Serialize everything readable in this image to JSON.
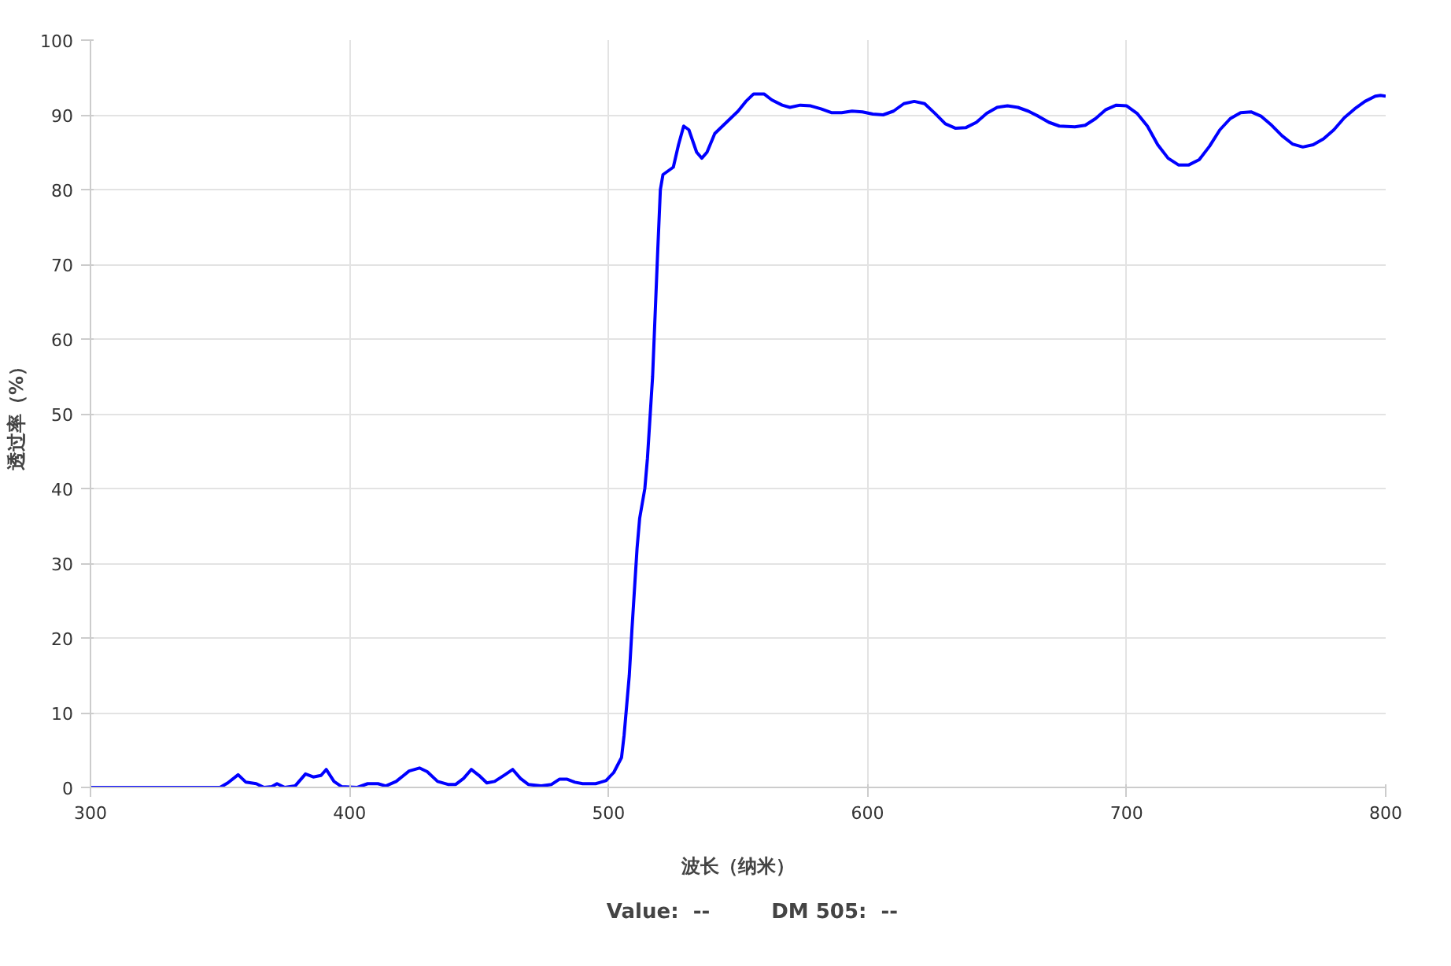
{
  "chart_data": {
    "type": "line",
    "xlabel": "波长（纳米）",
    "ylabel": "透过率（%）",
    "legend_title": "Value:  --",
    "xlim": [
      300,
      800
    ],
    "ylim": [
      0,
      100
    ],
    "xticks": [
      300,
      400,
      500,
      600,
      700,
      800
    ],
    "yticks": [
      0,
      10,
      20,
      30,
      40,
      50,
      60,
      70,
      80,
      90,
      100
    ],
    "grid": true,
    "legend": "bottom",
    "marker": "none",
    "line_style": "solid",
    "series": [
      {
        "name": "DM 505:  --",
        "color": "#0000ff",
        "x": [
          300,
          350,
          353,
          357,
          360,
          364,
          367,
          370,
          372,
          375,
          379,
          383,
          386,
          389,
          391,
          394,
          397,
          403,
          407,
          411,
          414,
          418,
          423,
          427,
          430,
          434,
          438,
          441,
          444,
          447,
          450,
          453,
          456,
          460,
          463,
          466,
          469,
          474,
          478,
          481,
          484,
          487,
          490,
          495,
          499,
          502,
          505,
          506,
          508,
          509,
          511,
          512,
          514,
          515,
          517,
          519,
          520,
          521,
          523,
          525,
          527,
          529,
          531,
          534,
          536,
          538,
          541,
          544,
          547,
          550,
          553,
          556,
          560,
          563,
          567,
          570,
          574,
          578,
          582,
          586,
          590,
          594,
          598,
          602,
          606,
          610,
          614,
          618,
          622,
          626,
          630,
          634,
          638,
          642,
          646,
          650,
          654,
          658,
          662,
          666,
          670,
          674,
          680,
          684,
          688,
          692,
          696,
          700,
          704,
          708,
          712,
          716,
          720,
          724,
          728,
          732,
          736,
          740,
          744,
          748,
          752,
          756,
          760,
          764,
          768,
          772,
          776,
          780,
          784,
          788,
          792,
          796,
          798,
          800
        ],
        "values": [
          0,
          0,
          0.6,
          1.7,
          0.7,
          0.5,
          0,
          0.1,
          0.5,
          0,
          0.2,
          1.8,
          1.4,
          1.6,
          2.4,
          0.8,
          0.1,
          0,
          0.5,
          0.5,
          0.2,
          0.8,
          2.2,
          2.6,
          2.1,
          0.8,
          0.4,
          0.4,
          1.2,
          2.4,
          1.6,
          0.6,
          0.8,
          1.7,
          2.4,
          1.2,
          0.4,
          0.2,
          0.4,
          1.1,
          1.1,
          0.7,
          0.5,
          0.5,
          0.9,
          2,
          4,
          7,
          15,
          21,
          32,
          36,
          40,
          44,
          55,
          72,
          80,
          82,
          82.5,
          83,
          86,
          88.5,
          88,
          85,
          84.2,
          85,
          87.5,
          88.5,
          89.5,
          90.5,
          91.8,
          92.8,
          92.8,
          92,
          91.3,
          91,
          91.3,
          91.2,
          90.8,
          90.3,
          90.3,
          90.5,
          90.4,
          90.1,
          90,
          90.5,
          91.5,
          91.8,
          91.5,
          90.2,
          88.8,
          88.2,
          88.3,
          89,
          90.2,
          91,
          91.2,
          91,
          90.5,
          89.8,
          89,
          88.5,
          88.4,
          88.6,
          89.5,
          90.7,
          91.3,
          91.2,
          90.2,
          88.5,
          86,
          84.2,
          83.3,
          83.3,
          84,
          85.8,
          88,
          89.5,
          90.3,
          90.4,
          89.8,
          88.6,
          87.2,
          86.1,
          85.7,
          86,
          86.8,
          88,
          89.6,
          90.8,
          91.8,
          92.5,
          92.6,
          92.5
        ]
      }
    ]
  }
}
